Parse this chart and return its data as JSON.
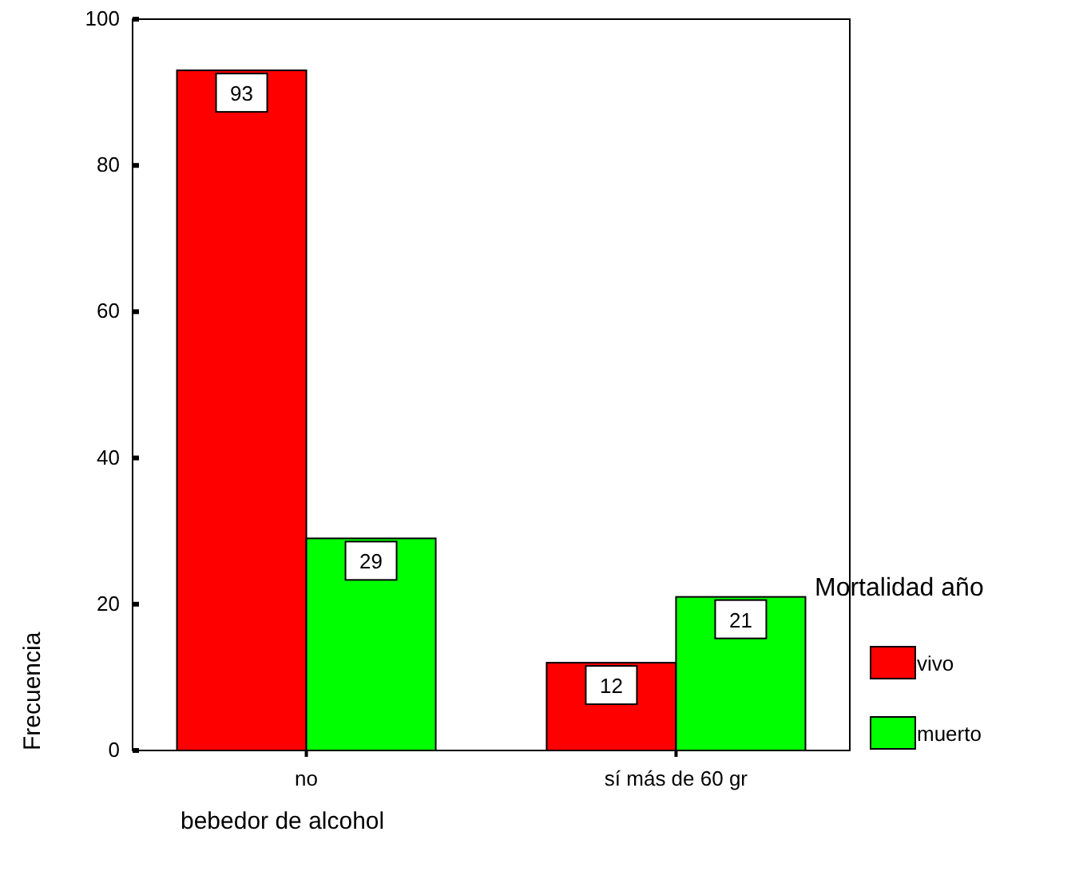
{
  "chart_data": {
    "type": "bar",
    "xlabel": "bebedor de alcohol",
    "ylabel": "Frecuencia",
    "legend_title": "Mortalidad año",
    "categories": [
      "no",
      "sí más de 60 gr"
    ],
    "series": [
      {
        "name": "vivo",
        "color": "#ff0000",
        "values": [
          93,
          12
        ]
      },
      {
        "name": "muerto",
        "color": "#00ff00",
        "values": [
          29,
          21
        ]
      }
    ],
    "ylim": [
      0,
      100
    ],
    "yticks": [
      0,
      20,
      40,
      60,
      80,
      100
    ],
    "data_labels": true,
    "legend": "right",
    "grid": false
  }
}
